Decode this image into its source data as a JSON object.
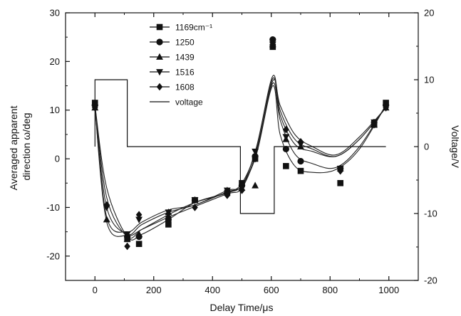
{
  "chart_data": {
    "type": "scatter",
    "xlabel": "Delay Time/μs",
    "ylabel_lines": [
      "Averaged apparent",
      "direction ω/deg"
    ],
    "ylabel_right": "Voltage/V",
    "xlim": [
      -100,
      1100
    ],
    "ylim": [
      -25,
      30
    ],
    "ylim_right": [
      -20,
      20
    ],
    "x_ticks": [
      0,
      200,
      400,
      600,
      800,
      1000
    ],
    "x_tick_labels": [
      "0",
      "200",
      "400",
      "600",
      "800",
      "1000"
    ],
    "y_ticks": [
      -20,
      -10,
      0,
      10,
      20,
      30
    ],
    "y_tick_labels": [
      "-20",
      "-10",
      "0",
      "10",
      "20",
      "30"
    ],
    "y_right_ticks": [
      -20,
      -10,
      0,
      10,
      20
    ],
    "y_right_tick_labels": [
      "-20",
      "-10",
      "0",
      "10",
      "20"
    ],
    "legend_position": "top-left",
    "series": [
      {
        "name": "1169cm⁻¹",
        "marker": "square",
        "points": [
          [
            0,
            11.5
          ],
          [
            110,
            -16.5
          ],
          [
            150,
            -17.5
          ],
          [
            250,
            -13.5
          ],
          [
            340,
            -8.5
          ],
          [
            450,
            -7.0
          ],
          [
            500,
            -5.0
          ],
          [
            545,
            0.0
          ],
          [
            605,
            23.0
          ],
          [
            650,
            -1.5
          ],
          [
            700,
            -2.5
          ],
          [
            835,
            -5.0
          ],
          [
            950,
            7.0
          ],
          [
            990,
            11.5
          ]
        ],
        "fit": [
          [
            0,
            11
          ],
          [
            40,
            -6
          ],
          [
            110,
            -16
          ],
          [
            160,
            -15.5
          ],
          [
            250,
            -12.5
          ],
          [
            340,
            -9
          ],
          [
            450,
            -7
          ],
          [
            500,
            -5.5
          ],
          [
            550,
            1
          ],
          [
            605,
            15
          ],
          [
            630,
            5
          ],
          [
            680,
            -1.5
          ],
          [
            740,
            -2.8
          ],
          [
            820,
            -2.2
          ],
          [
            900,
            2
          ],
          [
            990,
            11
          ]
        ]
      },
      {
        "name": "1250",
        "marker": "circle",
        "points": [
          [
            0,
            11.0
          ],
          [
            110,
            -16.0
          ],
          [
            150,
            -16.0
          ],
          [
            250,
            -12.5
          ],
          [
            340,
            -8.5
          ],
          [
            450,
            -7.0
          ],
          [
            500,
            -5.5
          ],
          [
            545,
            0.5
          ],
          [
            605,
            24.5
          ],
          [
            650,
            2.0
          ],
          [
            700,
            -0.5
          ],
          [
            835,
            -2.0
          ],
          [
            950,
            7.5
          ],
          [
            990,
            11.0
          ]
        ],
        "fit": [
          [
            0,
            11
          ],
          [
            40,
            -8
          ],
          [
            110,
            -16
          ],
          [
            160,
            -14.5
          ],
          [
            250,
            -11.5
          ],
          [
            340,
            -9
          ],
          [
            450,
            -7
          ],
          [
            500,
            -5
          ],
          [
            550,
            2
          ],
          [
            605,
            15.5
          ],
          [
            630,
            8
          ],
          [
            680,
            1
          ],
          [
            740,
            -1
          ],
          [
            820,
            -1.8
          ],
          [
            900,
            2.5
          ],
          [
            990,
            11
          ]
        ]
      },
      {
        "name": "1439",
        "marker": "triangle-up",
        "points": [
          [
            0,
            10.5
          ],
          [
            40,
            -12.5
          ],
          [
            110,
            -16.5
          ],
          [
            150,
            -15.5
          ],
          [
            250,
            -11.0
          ],
          [
            340,
            -8.5
          ],
          [
            450,
            -6.5
          ],
          [
            500,
            -6.0
          ],
          [
            545,
            -5.5
          ],
          [
            605,
            23.5
          ],
          [
            650,
            4.0
          ],
          [
            700,
            2.5
          ],
          [
            835,
            -2.0
          ],
          [
            950,
            7.0
          ],
          [
            990,
            10.5
          ]
        ],
        "fit": [
          [
            0,
            10.5
          ],
          [
            40,
            -10
          ],
          [
            110,
            -15.5
          ],
          [
            160,
            -13.5
          ],
          [
            250,
            -11
          ],
          [
            340,
            -9.5
          ],
          [
            450,
            -6.8
          ],
          [
            500,
            -5.5
          ],
          [
            550,
            1.5
          ],
          [
            605,
            16.5
          ],
          [
            630,
            9
          ],
          [
            680,
            3
          ],
          [
            740,
            1.5
          ],
          [
            820,
            0.5
          ],
          [
            900,
            4
          ],
          [
            990,
            10.5
          ]
        ]
      },
      {
        "name": "1516",
        "marker": "triangle-down",
        "points": [
          [
            0,
            10.5
          ],
          [
            40,
            -10.0
          ],
          [
            110,
            -15.5
          ],
          [
            150,
            -12.5
          ],
          [
            250,
            -11.0
          ],
          [
            340,
            -8.5
          ],
          [
            450,
            -6.5
          ],
          [
            500,
            -6.0
          ],
          [
            545,
            1.5
          ],
          [
            605,
            23.5
          ],
          [
            650,
            4.5
          ],
          [
            700,
            3.0
          ],
          [
            835,
            -2.0
          ],
          [
            950,
            7.5
          ],
          [
            990,
            10.5
          ]
        ],
        "fit": [
          [
            0,
            10.5
          ],
          [
            40,
            -12
          ],
          [
            110,
            -15
          ],
          [
            160,
            -13
          ],
          [
            250,
            -10.5
          ],
          [
            340,
            -9.5
          ],
          [
            450,
            -6.5
          ],
          [
            500,
            -5.5
          ],
          [
            550,
            2.5
          ],
          [
            605,
            17
          ],
          [
            630,
            10
          ],
          [
            680,
            4
          ],
          [
            740,
            2
          ],
          [
            820,
            0.5
          ],
          [
            900,
            4
          ],
          [
            990,
            10.5
          ]
        ]
      },
      {
        "name": "1608",
        "marker": "diamond",
        "points": [
          [
            0,
            10.5
          ],
          [
            40,
            -9.5
          ],
          [
            110,
            -18.0
          ],
          [
            150,
            -11.5
          ],
          [
            250,
            -12.0
          ],
          [
            340,
            -10.0
          ],
          [
            450,
            -7.5
          ],
          [
            500,
            -6.5
          ],
          [
            545,
            0.0
          ],
          [
            605,
            23.5
          ],
          [
            650,
            6.0
          ],
          [
            700,
            3.5
          ],
          [
            835,
            -2.5
          ],
          [
            950,
            7.0
          ],
          [
            990,
            10.5
          ]
        ],
        "fit": [
          [
            0,
            10.5
          ],
          [
            40,
            -13
          ],
          [
            110,
            -15.8
          ],
          [
            160,
            -14.5
          ],
          [
            250,
            -12
          ],
          [
            340,
            -9.8
          ],
          [
            450,
            -7.2
          ],
          [
            500,
            -6
          ],
          [
            550,
            1.5
          ],
          [
            605,
            16
          ],
          [
            630,
            11
          ],
          [
            680,
            5
          ],
          [
            740,
            2.5
          ],
          [
            820,
            0.8
          ],
          [
            900,
            4.5
          ],
          [
            990,
            10.5
          ]
        ]
      }
    ],
    "voltage": {
      "name": "voltage",
      "points": [
        [
          0,
          0
        ],
        [
          0,
          10
        ],
        [
          110,
          10
        ],
        [
          110,
          0
        ],
        [
          495,
          0
        ],
        [
          495,
          -10
        ],
        [
          610,
          -10
        ],
        [
          610,
          0
        ],
        [
          990,
          0
        ]
      ]
    }
  }
}
